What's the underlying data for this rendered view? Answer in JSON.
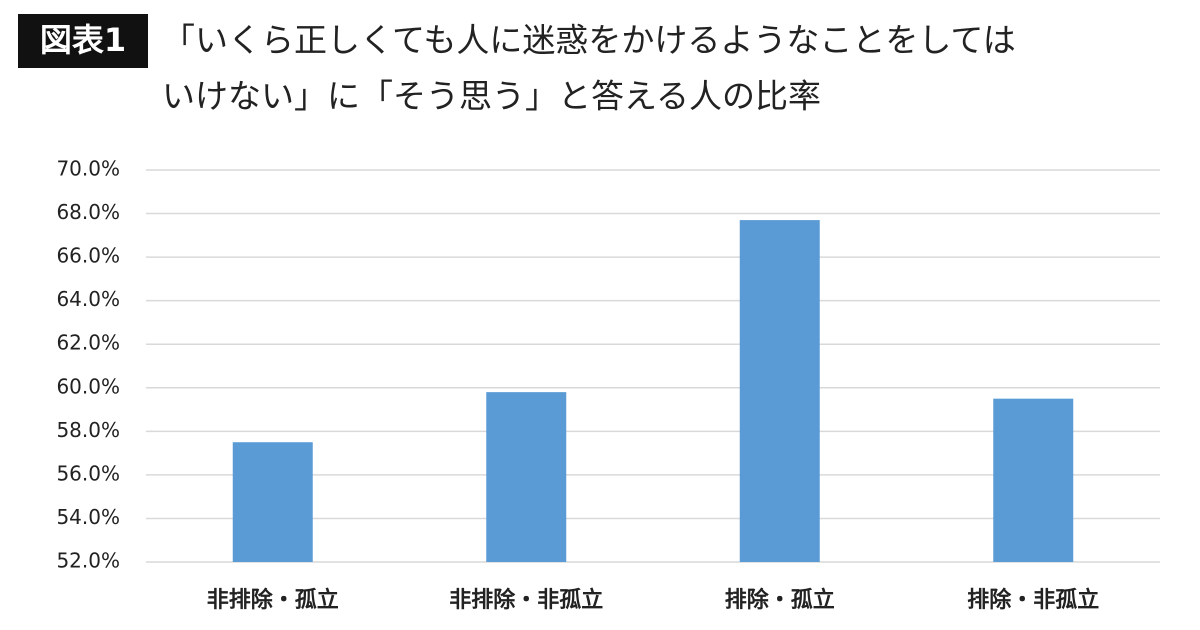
{
  "chart_data": {
    "type": "bar",
    "figure_label": "図表1",
    "title": [
      "「いくら正しくても人に迷惑をかけるようなことをしては",
      "いけない」に「そう思う」と答える人の比率"
    ],
    "categories": [
      "非排除・孤立",
      "非排除・非孤立",
      "排除・孤立",
      "排除・非孤立"
    ],
    "values": [
      57.5,
      59.8,
      67.7,
      59.5
    ],
    "color": "#5b9bd5",
    "ylim": [
      52,
      70
    ],
    "yticks": [
      {
        "value": 52,
        "label": "52.0%"
      },
      {
        "value": 54,
        "label": "54.0%"
      },
      {
        "value": 56,
        "label": "56.0%"
      },
      {
        "value": 58,
        "label": "58.0%"
      },
      {
        "value": 60,
        "label": "60.0%"
      },
      {
        "value": 62,
        "label": "62.0%"
      },
      {
        "value": 64,
        "label": "64.0%"
      },
      {
        "value": 66,
        "label": "66.0%"
      },
      {
        "value": 68,
        "label": "68.0%"
      },
      {
        "value": 70,
        "label": "70.0%"
      }
    ],
    "grid": true
  }
}
